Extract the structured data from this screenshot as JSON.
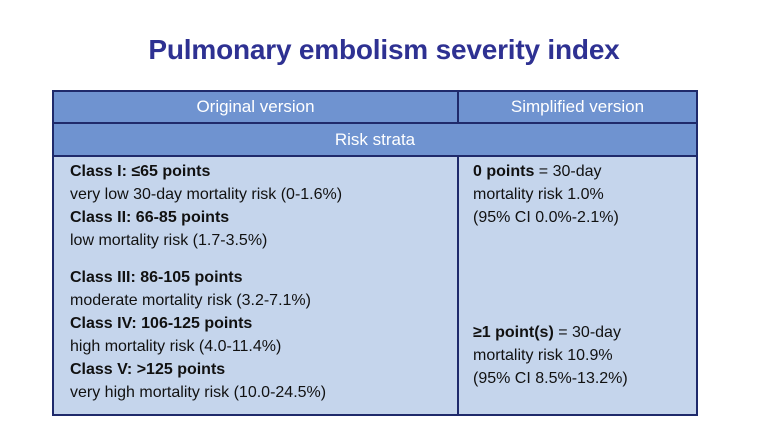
{
  "title": "Pulmonary embolism severity index",
  "table": {
    "headers": [
      "Original version",
      "Simplified version"
    ],
    "section": "Risk strata",
    "original": [
      {
        "label": "Class I: ≤65 points",
        "desc": "very low 30-day mortality risk (0-1.6%)"
      },
      {
        "label": "Class II: 66-85 points",
        "desc": "low mortality risk (1.7-3.5%)"
      },
      {
        "label": "Class III: 86-105 points",
        "desc": "moderate mortality risk (3.2-7.1%)"
      },
      {
        "label": "Class IV: 106-125 points",
        "desc": "high mortality risk (4.0-11.4%)"
      },
      {
        "label": "Class V: >125 points",
        "desc": "very high mortality risk (10.0-24.5%)"
      }
    ],
    "simplified": [
      {
        "bold": "0 points",
        "rest": " = 30-day",
        "line2": "mortality risk 1.0%",
        "line3": "(95% CI 0.0%-2.1%)"
      },
      {
        "bold": "≥1 point(s)",
        "rest": " = 30-day",
        "line2": "mortality risk 10.9%",
        "line3": "(95% CI 8.5%-13.2%)"
      }
    ]
  }
}
